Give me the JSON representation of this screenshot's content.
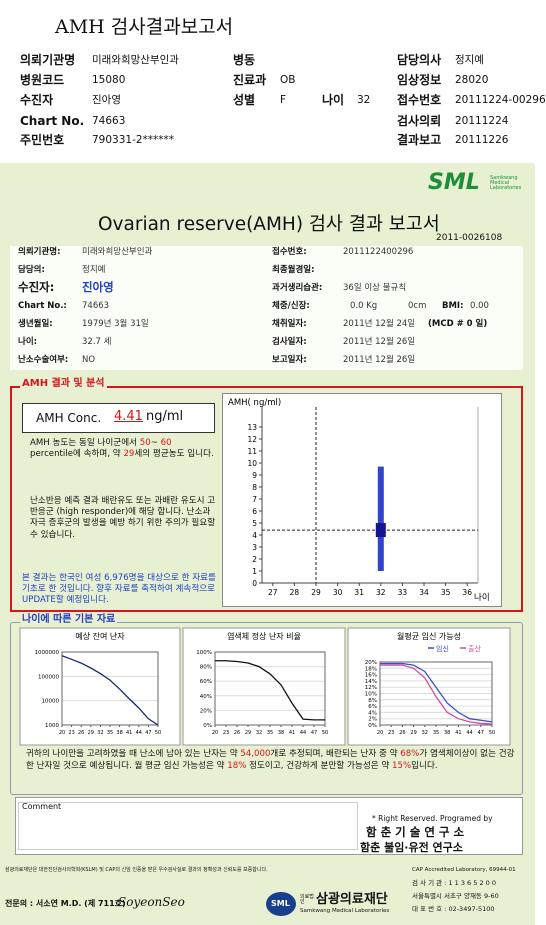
{
  "header": {
    "title": "AMH 검사결과보고서",
    "fields": [
      {
        "label": "의뢰기관명",
        "value": "미래와희망산부인과"
      },
      {
        "label": "병동"
      },
      {
        "label": "담당의사",
        "value": "정지예"
      },
      {
        "label": "병원코드",
        "value": "15080"
      },
      {
        "label": "진료과",
        "value": "OB"
      },
      {
        "label": "임상정보",
        "value": "28020"
      },
      {
        "label": "수진자",
        "value": "진아영"
      },
      {
        "label": "성별",
        "value": "F"
      },
      {
        "label": "나이",
        "value": "32"
      },
      {
        "label": "접수번호",
        "value": "20111224-00296"
      },
      {
        "label": "Chart No.",
        "value": "74663"
      },
      {
        "label": "검사의뢰",
        "value": "20111224"
      },
      {
        "label": "주민번호",
        "value": "790331-2******"
      },
      {
        "label": "결과보고",
        "value": "20111226"
      }
    ]
  },
  "report": {
    "logo": "SML",
    "logo_sub": "Samkwang Medical Laboratories",
    "title": "Ovarian reserve(AMH) 검사 결과 보고서",
    "number": "2011-0026108",
    "left": [
      {
        "label": "의뢰기관명:",
        "value": "미래와희망산부인과"
      },
      {
        "label": "담당의:",
        "value": "정지예"
      },
      {
        "label": "수진자:",
        "value": "진아영"
      },
      {
        "label": "Chart No.:",
        "value": "74663"
      },
      {
        "label": "생년월일:",
        "value": "1979년 3월 31일"
      },
      {
        "label": "나이:",
        "value": "32.7 세"
      },
      {
        "label": "난소수술여부:",
        "value": "NO"
      }
    ],
    "right": [
      {
        "label": "접수번호:",
        "value": "2011122400296"
      },
      {
        "label": "최종월경일:"
      },
      {
        "label": "과거생리습관:",
        "value": "36일 이상 불규칙"
      },
      {
        "label": "체중/신장:",
        "parts": [
          "0.0 Kg",
          "0cm",
          "BMI:",
          "0.00"
        ]
      },
      {
        "label": "채취일자:",
        "value": "2011년 12월 24일",
        "note": "(MCD # 0 일)"
      },
      {
        "label": "검사일자:",
        "value": "2011년 12월 26일"
      },
      {
        "label": "보고일자:",
        "value": "2011년 12월 26일"
      }
    ]
  },
  "result": {
    "section": "AMH 결과 및 분석",
    "conc_label": "AMH Conc.",
    "unit": "ng/ml",
    "p1": [
      "AMH 농도는 동일 나이군에서",
      "50",
      "~",
      "60",
      "percentile에 속하며, 약",
      "세의 평균농도 입니다."
    ],
    "p2": "난소반응 예측 결과 배란유도 또는 과배란 유도시 고반응군 (high responder)에 해당 합니다. 난소과자극 증후군의 발생을 예방 하기 위한 주의가 필요할 수 있습니다.",
    "p3": "본 결과는 한국인 여성 6,976명을 대상으로 한 자료를 기초로 한 것입니다. 향후 자료를 축적하여 계속적으로 UPDATE할 예정입니다."
  },
  "amh_chart": {
    "type": "range",
    "y_label": "AMH( ng/ml)",
    "x_label": "나이",
    "xlim": [
      26.5,
      36.5
    ],
    "ylim": [
      0,
      14
    ],
    "xticks": [
      27,
      28,
      29,
      30,
      31,
      32,
      33,
      34,
      35,
      36
    ],
    "yticks": [
      0,
      1,
      2,
      3,
      4,
      5,
      6,
      7,
      8,
      9,
      10,
      11,
      12,
      13
    ],
    "age": 32,
    "value": 4.41,
    "range": [
      1.0,
      9.7
    ],
    "equivalent_age": 29
  },
  "reference": {
    "section": "나이에 따른 기본 자료",
    "charts": [
      {
        "type": "line",
        "title": "예상 잔여 난자",
        "log": true,
        "xlim": [
          20,
          50
        ],
        "ylim": [
          1000,
          1000000
        ],
        "yticks": [
          1000,
          10000,
          100000,
          1000000
        ],
        "xticks": [
          20,
          23,
          26,
          29,
          32,
          35,
          38,
          41,
          44,
          47,
          50
        ],
        "x": [
          20,
          23,
          26,
          29,
          32,
          35,
          38,
          41,
          44,
          47,
          50
        ],
        "series": [
          {
            "color": "#1a2a6c",
            "values": [
              700000,
              500000,
              350000,
              220000,
              130000,
              70000,
              30000,
              12000,
              5000,
              1800,
              1000
            ]
          }
        ]
      },
      {
        "type": "line",
        "title": "염색체 정상 난자 비율",
        "xlim": [
          20,
          50
        ],
        "ylim": [
          0,
          100
        ],
        "yticks": [
          {
            "value": 0,
            "label": "0%"
          },
          {
            "value": 20,
            "label": "20%"
          },
          {
            "value": 40,
            "label": "40%"
          },
          {
            "value": 60,
            "label": "60%"
          },
          {
            "value": 80,
            "label": "80%"
          },
          {
            "value": 100,
            "label": "100%"
          }
        ],
        "xticks": [
          20,
          23,
          26,
          29,
          32,
          35,
          38,
          41,
          44,
          47,
          50
        ],
        "x": [
          20,
          23,
          26,
          29,
          32,
          35,
          38,
          41,
          44,
          47,
          50
        ],
        "series": [
          {
            "color": "#111111",
            "values": [
              88,
              88,
              87,
              85,
              80,
              70,
              55,
              30,
              8,
              7,
              7
            ]
          }
        ]
      },
      {
        "type": "line",
        "title": "월평균 임신 가능성",
        "xlim": [
          20,
          50
        ],
        "ylim": [
          0,
          20
        ],
        "yticks": [
          {
            "value": 0,
            "label": "0%"
          },
          {
            "value": 2,
            "label": "2%"
          },
          {
            "value": 4,
            "label": "4%"
          },
          {
            "value": 6,
            "label": "6%"
          },
          {
            "value": 8,
            "label": "8%"
          },
          {
            "value": 10,
            "label": "10%"
          },
          {
            "value": 12,
            "label": "12%"
          },
          {
            "value": 14,
            "label": "14%"
          },
          {
            "value": 16,
            "label": "16%"
          },
          {
            "value": 18,
            "label": "18%"
          },
          {
            "value": 20,
            "label": "20%"
          }
        ],
        "xticks": [
          20,
          23,
          26,
          29,
          32,
          35,
          38,
          41,
          44,
          47,
          50
        ],
        "x": [
          20,
          23,
          26,
          29,
          32,
          35,
          38,
          41,
          44,
          47,
          50
        ],
        "series": [
          {
            "name": "임신",
            "color": "#3a4fcf",
            "values": [
              19.5,
              19.5,
              19.5,
              19,
              17,
              12,
              7,
              4,
              2,
              1.5,
              1
            ]
          },
          {
            "name": "출산",
            "color": "#d04ca0",
            "values": [
              19,
              19,
              19,
              18,
              15,
              9,
              4,
              2,
              1,
              0.5,
              0.3
            ]
          }
        ]
      }
    ],
    "summary": [
      "귀하의 나이만을 고려하였을 때 난소에 남아 있는 난자는 약",
      "54,000",
      "개로 추정되며, 배란되는 난자 중 약",
      "68%",
      "가 염색체이상이 없는 건강한 난자일 것으로 예상됩니다. 월 평균 임신 가능성은 약",
      "18%",
      "정도이고, 건강하게 분만할 가능성은 약",
      "15%",
      "입니다."
    ]
  },
  "comment": {
    "label": "Comment",
    "rights": "* Right Reserved. Programed by",
    "lab1": "함 춘 기 술 연 구 소",
    "lab2": "함춘 불임·유전 연구소"
  },
  "footer": {
    "notice": "삼광의료재단은 대한진단검사의학회(KSLM) 및 CAP의 신임 인증을 받은 우수검사실로 결과의 정확성과 신뢰도를 보증합니다.",
    "cap": "CAP Accredited Laboratory, 69944-01",
    "doctor": "전문의 : 서소연 M.D. (제 711호)",
    "signature": "SoyeonSeo",
    "logo": "SML",
    "org_small": "의료법인",
    "org": "삼광의료재단",
    "org_en": "Samkwang Medical Laboratories",
    "code": "검 사 기 관 : 1 1 3 6 5 2 0 0",
    "address": "서울특별시 서초구 양재동 9-60",
    "phone": "대 표 번 호 : 02-3497-5100"
  }
}
